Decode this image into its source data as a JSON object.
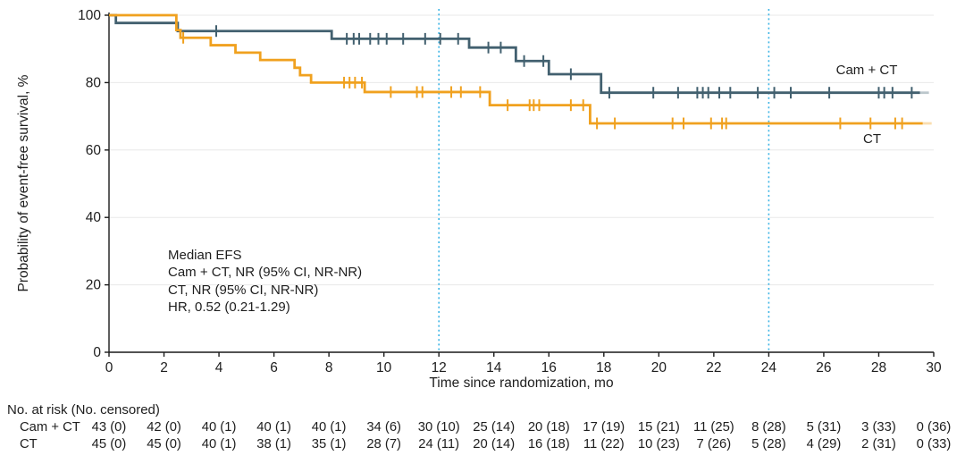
{
  "chart_data": {
    "type": "line",
    "subtype": "kaplan-meier-step",
    "title": "",
    "xlabel": "Time since randomization, mo",
    "ylabel": "Probability of event-free survival, %",
    "xlim": [
      0,
      30
    ],
    "ylim": [
      0,
      100
    ],
    "grid": "horizontal",
    "x_ticks": [
      0,
      2,
      4,
      6,
      8,
      10,
      12,
      14,
      16,
      18,
      20,
      22,
      24,
      26,
      28,
      30
    ],
    "y_ticks": [
      0,
      20,
      40,
      60,
      80,
      100
    ],
    "reference_lines_x": [
      12,
      24
    ],
    "colors": {
      "axis": "#1a1a1a",
      "grid": "#e8e8e8",
      "reference": "#3bb4e5",
      "text": "#1e1e1e"
    },
    "annotation_lines": [
      "Median EFS",
      "Cam + CT, NR (95% CI, NR-NR)",
      "CT, NR (95% CI, NR-NR)",
      "HR, 0.52 (0.21-1.29)"
    ],
    "series": [
      {
        "id": "cam-ct",
        "name": "Cam + CT",
        "color": "#42606f",
        "steps": [
          [
            0,
            100
          ],
          [
            0.25,
            97.7
          ],
          [
            2.5,
            95.3
          ],
          [
            8.1,
            93.0
          ],
          [
            13.1,
            90.4
          ],
          [
            14.8,
            86.4
          ],
          [
            16.0,
            82.5
          ],
          [
            17.9,
            77.0
          ]
        ],
        "end_time": 29.5,
        "censor_times": [
          3.9,
          8.65,
          8.9,
          9.1,
          9.5,
          9.8,
          10.1,
          10.7,
          11.5,
          12.05,
          12.7,
          13.8,
          14.25,
          15.1,
          15.8,
          16.8,
          18.2,
          19.8,
          20.7,
          21.4,
          21.6,
          21.8,
          22.2,
          22.6,
          23.6,
          24.2,
          24.8,
          26.2,
          28.0,
          28.2,
          28.5,
          29.2
        ]
      },
      {
        "id": "ct",
        "name": "CT",
        "color": "#f0a11f",
        "steps": [
          [
            0,
            100
          ],
          [
            2.45,
            95.6
          ],
          [
            2.6,
            93.3
          ],
          [
            3.7,
            91.1
          ],
          [
            4.6,
            88.9
          ],
          [
            5.5,
            86.7
          ],
          [
            6.75,
            84.4
          ],
          [
            6.95,
            82.2
          ],
          [
            7.35,
            80.0
          ],
          [
            9.3,
            77.2
          ],
          [
            13.85,
            73.3
          ],
          [
            17.5,
            67.9
          ]
        ],
        "end_time": 29.6,
        "censor_times": [
          2.7,
          8.55,
          8.75,
          8.95,
          9.2,
          10.25,
          11.2,
          11.4,
          12.45,
          12.8,
          13.5,
          14.5,
          15.3,
          15.45,
          15.65,
          16.8,
          17.25,
          17.75,
          18.4,
          20.5,
          20.9,
          21.9,
          22.3,
          22.45,
          26.6,
          27.7,
          28.6,
          28.85
        ]
      }
    ],
    "risk_table": {
      "header": "No. at risk (No. censored)",
      "times": [
        0,
        2,
        4,
        6,
        8,
        10,
        12,
        14,
        16,
        18,
        20,
        22,
        24,
        26,
        28,
        30
      ],
      "rows": [
        {
          "label": "Cam + CT",
          "values": [
            "43 (0)",
            "42 (0)",
            "40 (1)",
            "40 (1)",
            "40 (1)",
            "34 (6)",
            "30 (10)",
            "25 (14)",
            "20 (18)",
            "17 (19)",
            "15 (21)",
            "11 (25)",
            "8 (28)",
            "5 (31)",
            "3 (33)",
            "0 (36)"
          ]
        },
        {
          "label": "CT",
          "values": [
            "45 (0)",
            "45 (0)",
            "40 (1)",
            "38 (1)",
            "35 (1)",
            "28 (7)",
            "24 (11)",
            "20 (14)",
            "16 (18)",
            "11 (22)",
            "10 (23)",
            "7 (26)",
            "5 (28)",
            "4 (29)",
            "2 (31)",
            "0 (33)"
          ]
        }
      ]
    }
  }
}
